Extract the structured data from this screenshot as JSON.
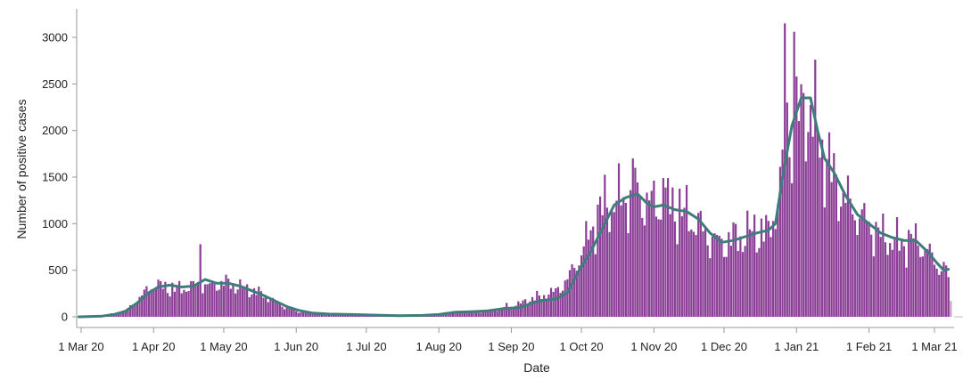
{
  "chart_data": {
    "type": "bar",
    "xlabel": "Date",
    "ylabel": "Number of positive cases",
    "x_start": "2020-02-29",
    "x_tick_labels": [
      "1 Mar 20",
      "1 Apr 20",
      "1 May 20",
      "1 Jun 20",
      "1 Jul 20",
      "1 Aug 20",
      "1 Sep 20",
      "1 Oct 20",
      "1 Nov 20",
      "1 Dec 20",
      "1 Jan 21",
      "1 Feb 21",
      "1 Mar 21"
    ],
    "x_tick_dates": [
      "2020-03-01",
      "2020-04-01",
      "2020-05-01",
      "2020-06-01",
      "2020-07-01",
      "2020-08-01",
      "2020-09-01",
      "2020-10-01",
      "2020-11-01",
      "2020-12-01",
      "2021-01-01",
      "2021-02-01",
      "2021-03-01"
    ],
    "y_ticks": [
      0,
      500,
      1000,
      1500,
      2000,
      2500,
      3000
    ],
    "ylim": [
      0,
      3150
    ],
    "bar_color": "#8b3f96",
    "incomplete_bar_color": "#c4a3c9",
    "line_color": "#3f7d7d",
    "grid": false,
    "bar_anchors": [
      [
        "2020-02-29",
        0
      ],
      [
        "2020-03-06",
        5
      ],
      [
        "2020-03-12",
        25
      ],
      [
        "2020-03-16",
        35
      ],
      [
        "2020-03-20",
        70
      ],
      [
        "2020-03-24",
        150
      ],
      [
        "2020-03-28",
        260
      ],
      [
        "2020-04-01",
        350
      ],
      [
        "2020-04-05",
        330
      ],
      [
        "2020-04-10",
        300
      ],
      [
        "2020-04-15",
        320
      ],
      [
        "2020-04-20",
        350
      ],
      [
        "2020-04-24",
        330
      ],
      [
        "2020-04-29",
        360
      ],
      [
        "2020-05-03",
        370
      ],
      [
        "2020-05-08",
        320
      ],
      [
        "2020-05-12",
        300
      ],
      [
        "2020-05-17",
        250
      ],
      [
        "2020-05-22",
        180
      ],
      [
        "2020-05-27",
        110
      ],
      [
        "2020-06-01",
        60
      ],
      [
        "2020-06-08",
        40
      ],
      [
        "2020-06-20",
        25
      ],
      [
        "2020-07-05",
        15
      ],
      [
        "2020-07-20",
        12
      ],
      [
        "2020-08-01",
        25
      ],
      [
        "2020-08-10",
        50
      ],
      [
        "2020-08-20",
        60
      ],
      [
        "2020-08-27",
        80
      ],
      [
        "2020-09-01",
        100
      ],
      [
        "2020-09-05",
        150
      ],
      [
        "2020-09-10",
        200
      ],
      [
        "2020-09-15",
        230
      ],
      [
        "2020-09-20",
        280
      ],
      [
        "2020-09-25",
        400
      ],
      [
        "2020-09-28",
        550
      ],
      [
        "2020-10-02",
        750
      ],
      [
        "2020-10-06",
        1000
      ],
      [
        "2020-10-10",
        1200
      ],
      [
        "2020-10-15",
        1250
      ],
      [
        "2020-10-20",
        1300
      ],
      [
        "2020-10-25",
        1300
      ],
      [
        "2020-10-30",
        1250
      ],
      [
        "2020-11-04",
        1200
      ],
      [
        "2020-11-08",
        1250
      ],
      [
        "2020-11-12",
        1150
      ],
      [
        "2020-11-16",
        1100
      ],
      [
        "2020-11-20",
        1000
      ],
      [
        "2020-11-25",
        850
      ],
      [
        "2020-11-30",
        800
      ],
      [
        "2020-12-05",
        850
      ],
      [
        "2020-12-10",
        900
      ],
      [
        "2020-12-15",
        950
      ],
      [
        "2020-12-20",
        900
      ],
      [
        "2020-12-24",
        1300
      ],
      [
        "2020-12-28",
        1900
      ],
      [
        "2021-01-01",
        2000
      ],
      [
        "2021-01-04",
        2300
      ],
      [
        "2021-01-07",
        2250
      ],
      [
        "2021-01-10",
        2000
      ],
      [
        "2021-01-14",
        1700
      ],
      [
        "2021-01-18",
        1450
      ],
      [
        "2021-01-24",
        1200
      ],
      [
        "2021-01-30",
        1050
      ],
      [
        "2021-02-05",
        900
      ],
      [
        "2021-02-10",
        850
      ],
      [
        "2021-02-15",
        800
      ],
      [
        "2021-02-20",
        850
      ],
      [
        "2021-02-25",
        750
      ],
      [
        "2021-03-01",
        600
      ],
      [
        "2021-03-05",
        520
      ],
      [
        "2021-03-07",
        450
      ]
    ],
    "bar_spikes": [
      [
        "2020-04-21",
        780
      ],
      [
        "2020-08-30",
        150
      ],
      [
        "2020-10-23",
        1700
      ],
      [
        "2020-10-24",
        1600
      ],
      [
        "2020-11-05",
        1490
      ],
      [
        "2020-12-27",
        3150
      ],
      [
        "2020-12-28",
        2300
      ],
      [
        "2020-12-31",
        3060
      ],
      [
        "2021-01-01",
        2580
      ]
    ],
    "incomplete_bar": [
      "2021-03-08",
      170
    ],
    "line_points": [
      [
        "2020-02-29",
        0
      ],
      [
        "2020-03-10",
        8
      ],
      [
        "2020-03-15",
        25
      ],
      [
        "2020-03-20",
        60
      ],
      [
        "2020-03-25",
        150
      ],
      [
        "2020-03-30",
        260
      ],
      [
        "2020-04-03",
        320
      ],
      [
        "2020-04-08",
        340
      ],
      [
        "2020-04-13",
        320
      ],
      [
        "2020-04-18",
        330
      ],
      [
        "2020-04-23",
        400
      ],
      [
        "2020-04-28",
        360
      ],
      [
        "2020-05-03",
        360
      ],
      [
        "2020-05-08",
        330
      ],
      [
        "2020-05-13",
        280
      ],
      [
        "2020-05-18",
        230
      ],
      [
        "2020-05-23",
        170
      ],
      [
        "2020-05-28",
        110
      ],
      [
        "2020-06-02",
        70
      ],
      [
        "2020-06-08",
        40
      ],
      [
        "2020-06-15",
        30
      ],
      [
        "2020-06-25",
        25
      ],
      [
        "2020-07-05",
        18
      ],
      [
        "2020-07-15",
        12
      ],
      [
        "2020-07-25",
        15
      ],
      [
        "2020-08-01",
        25
      ],
      [
        "2020-08-08",
        50
      ],
      [
        "2020-08-15",
        55
      ],
      [
        "2020-08-22",
        65
      ],
      [
        "2020-08-29",
        90
      ],
      [
        "2020-09-05",
        100
      ],
      [
        "2020-09-10",
        150
      ],
      [
        "2020-09-15",
        180
      ],
      [
        "2020-09-20",
        190
      ],
      [
        "2020-09-25",
        260
      ],
      [
        "2020-09-30",
        500
      ],
      [
        "2020-10-05",
        700
      ],
      [
        "2020-10-10",
        950
      ],
      [
        "2020-10-15",
        1200
      ],
      [
        "2020-10-20",
        1280
      ],
      [
        "2020-10-25",
        1320
      ],
      [
        "2020-10-29",
        1220
      ],
      [
        "2020-11-01",
        1180
      ],
      [
        "2020-11-05",
        1200
      ],
      [
        "2020-11-10",
        1150
      ],
      [
        "2020-11-15",
        1130
      ],
      [
        "2020-11-20",
        1050
      ],
      [
        "2020-11-25",
        900
      ],
      [
        "2020-11-30",
        800
      ],
      [
        "2020-12-05",
        820
      ],
      [
        "2020-12-10",
        860
      ],
      [
        "2020-12-15",
        900
      ],
      [
        "2020-12-20",
        930
      ],
      [
        "2020-12-23",
        1000
      ],
      [
        "2020-12-26",
        1500
      ],
      [
        "2020-12-30",
        2050
      ],
      [
        "2021-01-03",
        2350
      ],
      [
        "2021-01-07",
        2350
      ],
      [
        "2021-01-10",
        2000
      ],
      [
        "2021-01-13",
        1700
      ],
      [
        "2021-01-17",
        1550
      ],
      [
        "2021-01-22",
        1300
      ],
      [
        "2021-01-27",
        1100
      ],
      [
        "2021-02-01",
        1000
      ],
      [
        "2021-02-06",
        900
      ],
      [
        "2021-02-11",
        850
      ],
      [
        "2021-02-16",
        820
      ],
      [
        "2021-02-21",
        820
      ],
      [
        "2021-02-26",
        700
      ],
      [
        "2021-03-02",
        580
      ],
      [
        "2021-03-05",
        500
      ],
      [
        "2021-03-07",
        510
      ]
    ]
  }
}
